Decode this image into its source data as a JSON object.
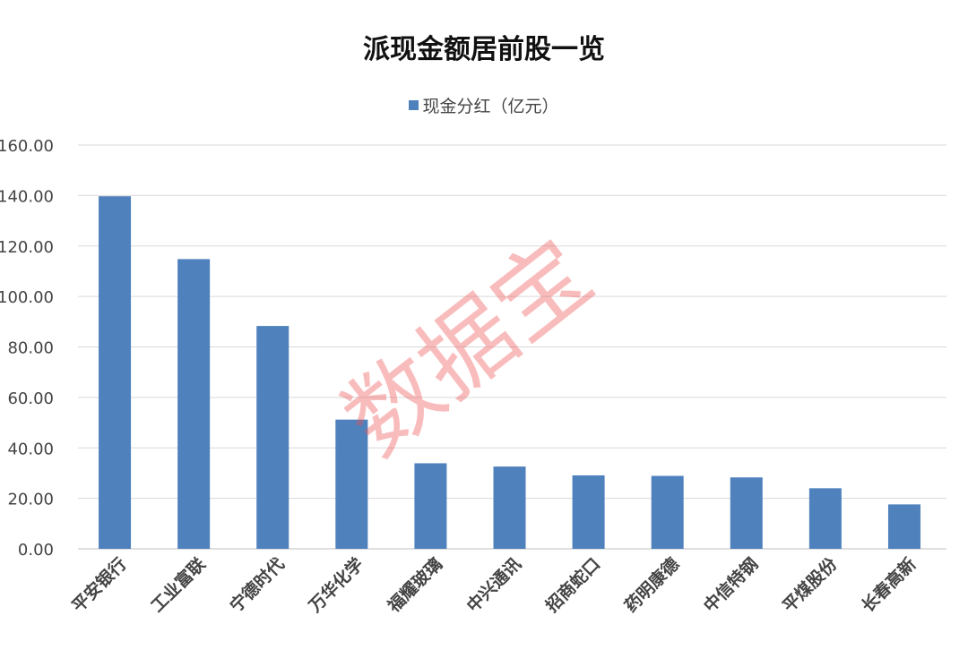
{
  "chart_data": {
    "type": "bar",
    "title": "派现金额居前股一览",
    "categories": [
      "平安银行",
      "工业富联",
      "宁德时代",
      "万华化学",
      "福耀玻璃",
      "中兴通讯",
      "招商蛇口",
      "药明康德",
      "中信特钢",
      "平煤股份",
      "长春高新"
    ],
    "series": [
      {
        "name": "现金分红（亿元）",
        "values": [
          139.7,
          114.8,
          88.3,
          51.2,
          33.9,
          32.6,
          29.1,
          28.9,
          28.3,
          24.0,
          17.6
        ]
      }
    ],
    "ylim": [
      0,
      160
    ],
    "yticks": [
      "0.00",
      "20.00",
      "40.00",
      "60.00",
      "80.00",
      "100.00",
      "120.00",
      "140.00",
      "160.00"
    ],
    "grid": true,
    "legend_position": "top-center",
    "bar_color": "#4f81bd"
  },
  "watermark": "数据宝"
}
